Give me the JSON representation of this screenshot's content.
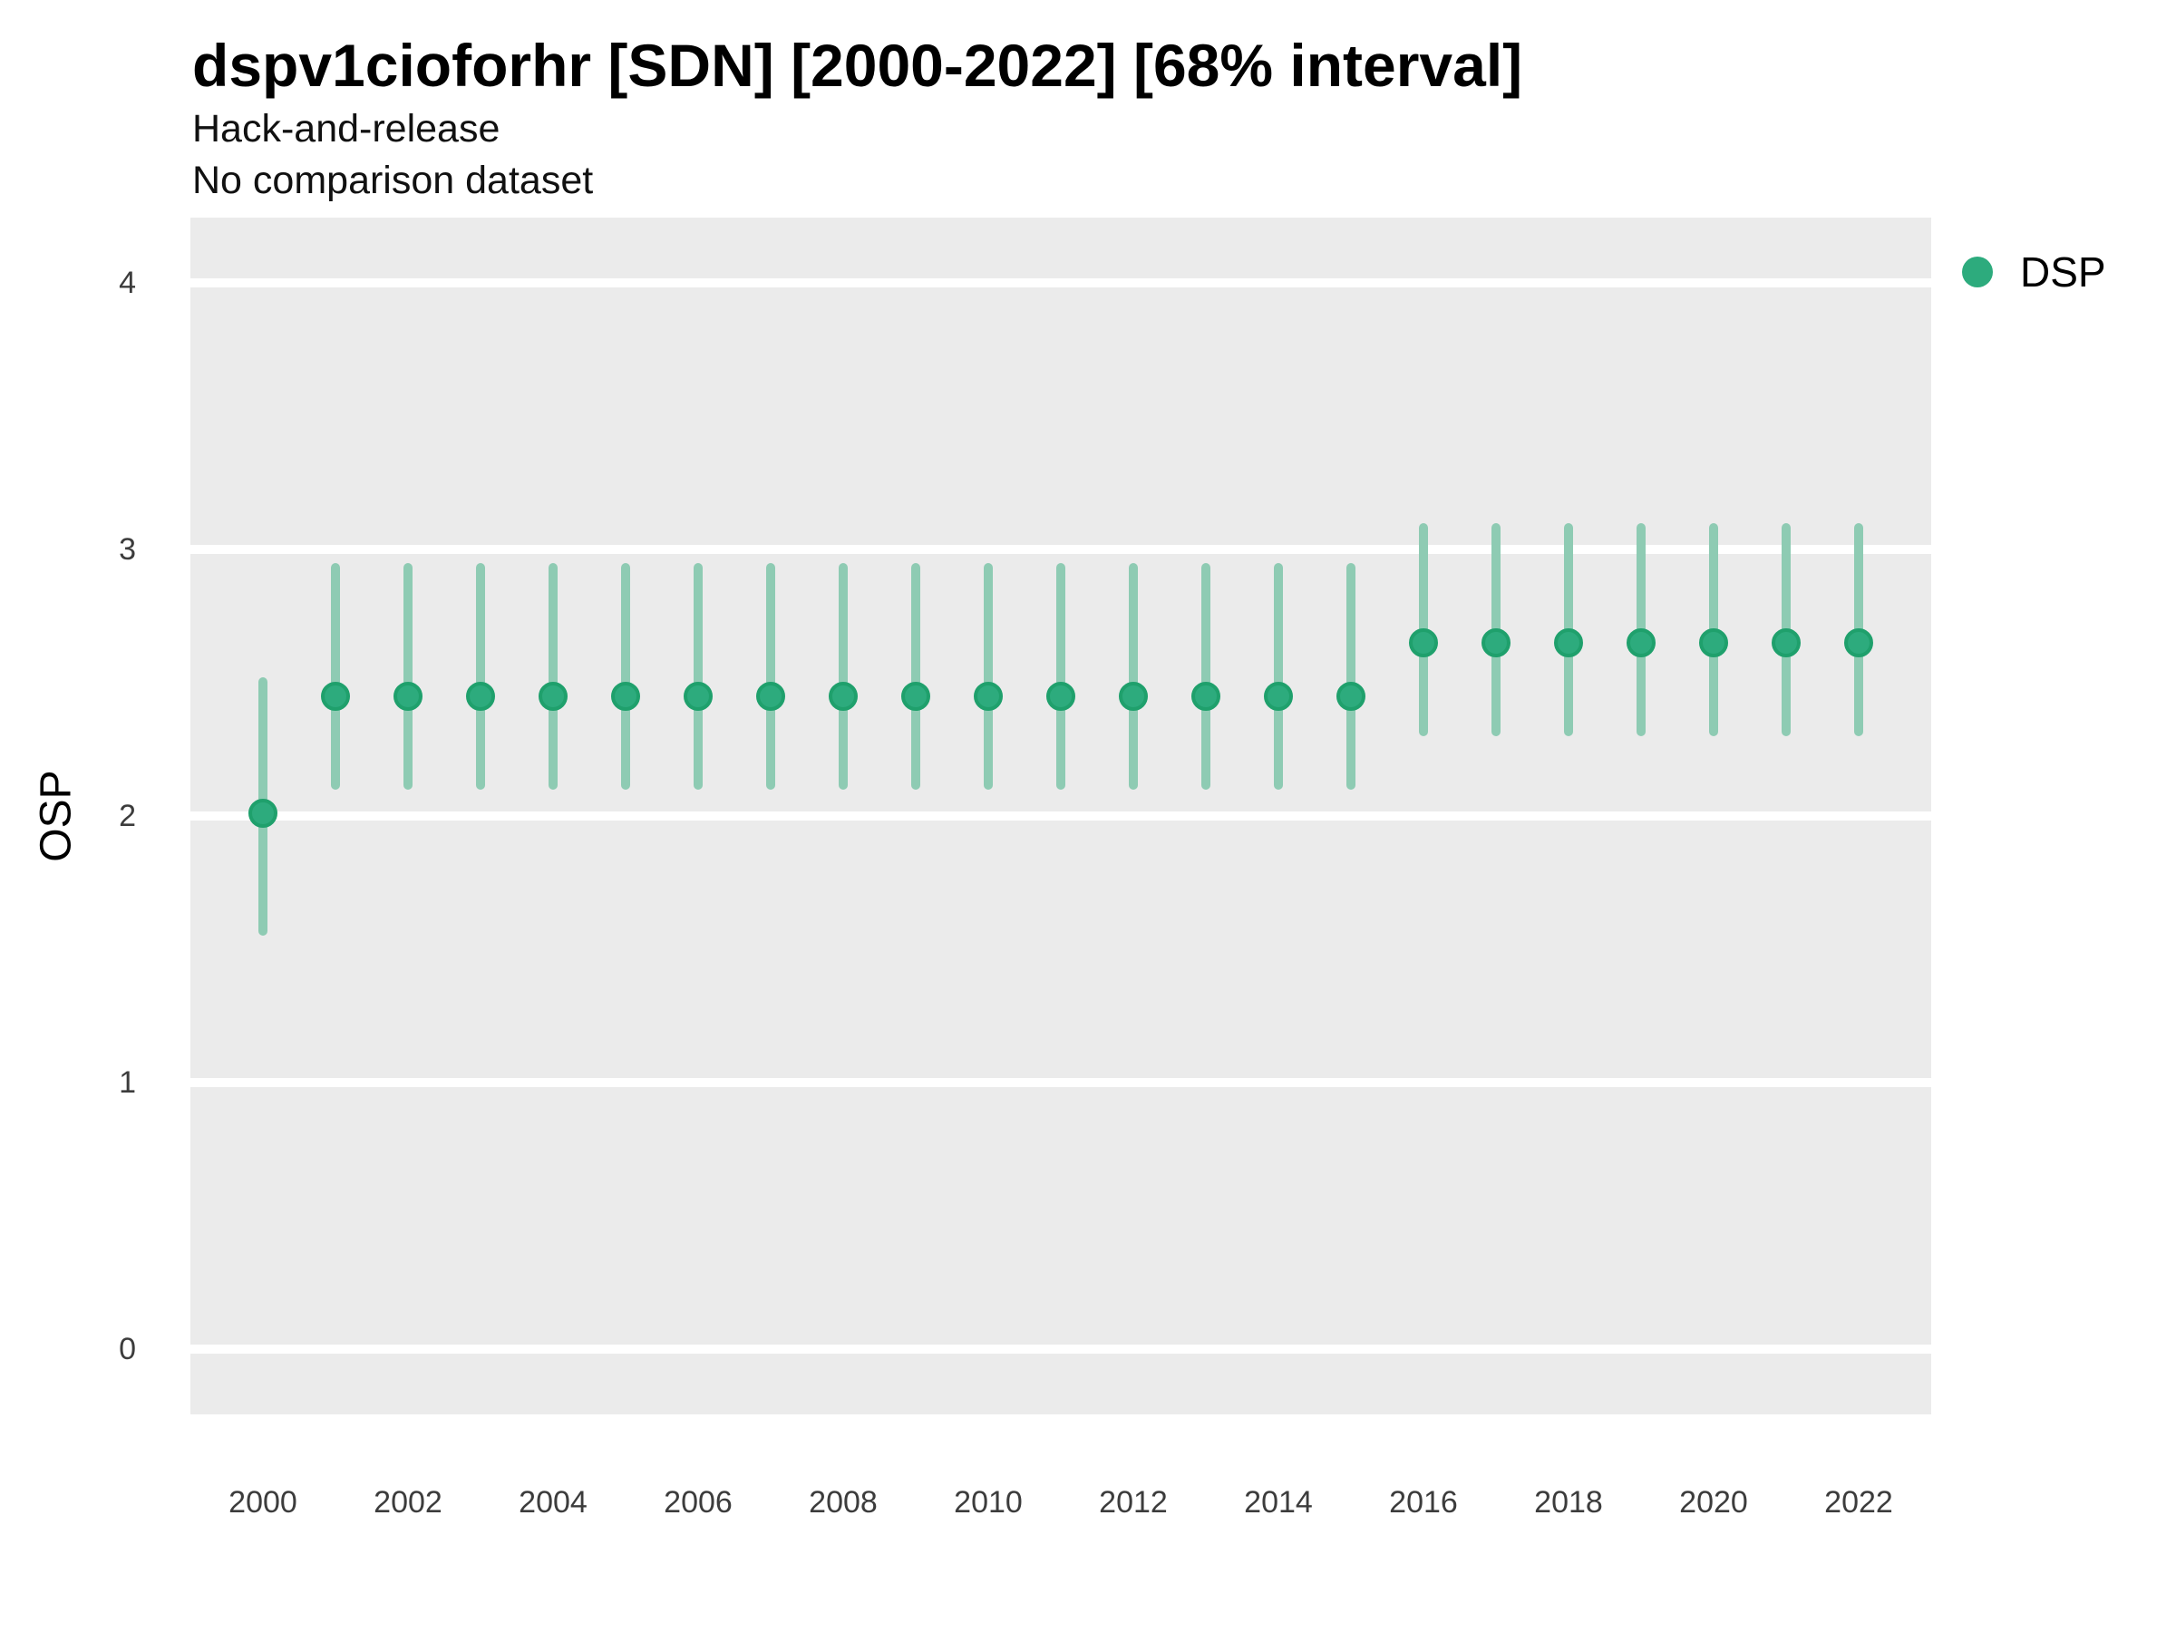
{
  "chart_data": {
    "type": "scatter",
    "title": "dspv1cioforhr [SDN] [2000-2022] [68% interval]",
    "subtitles": [
      "Hack-and-release",
      "No comparison dataset"
    ],
    "xlabel": "",
    "ylabel": "OSP",
    "xlim": [
      1999,
      2023
    ],
    "ylim": [
      0,
      4
    ],
    "xticks": [
      2000,
      2002,
      2004,
      2006,
      2008,
      2010,
      2012,
      2014,
      2016,
      2018,
      2020,
      2022
    ],
    "yticks": [
      0,
      1,
      2,
      3,
      4
    ],
    "grid": "horizontal-major-only",
    "legend_position": "right-top",
    "legend": [
      {
        "label": "DSP",
        "color": "#2dab7d"
      }
    ],
    "series": [
      {
        "name": "DSP",
        "geom": "pointrange",
        "interval": "68%",
        "points": [
          {
            "x": 2000,
            "y": 2.01,
            "ymin": 1.55,
            "ymax": 2.52
          },
          {
            "x": 2001,
            "y": 2.45,
            "ymin": 2.1,
            "ymax": 2.95
          },
          {
            "x": 2002,
            "y": 2.45,
            "ymin": 2.1,
            "ymax": 2.95
          },
          {
            "x": 2003,
            "y": 2.45,
            "ymin": 2.1,
            "ymax": 2.95
          },
          {
            "x": 2004,
            "y": 2.45,
            "ymin": 2.1,
            "ymax": 2.95
          },
          {
            "x": 2005,
            "y": 2.45,
            "ymin": 2.1,
            "ymax": 2.95
          },
          {
            "x": 2006,
            "y": 2.45,
            "ymin": 2.1,
            "ymax": 2.95
          },
          {
            "x": 2007,
            "y": 2.45,
            "ymin": 2.1,
            "ymax": 2.95
          },
          {
            "x": 2008,
            "y": 2.45,
            "ymin": 2.1,
            "ymax": 2.95
          },
          {
            "x": 2009,
            "y": 2.45,
            "ymin": 2.1,
            "ymax": 2.95
          },
          {
            "x": 2010,
            "y": 2.45,
            "ymin": 2.1,
            "ymax": 2.95
          },
          {
            "x": 2011,
            "y": 2.45,
            "ymin": 2.1,
            "ymax": 2.95
          },
          {
            "x": 2012,
            "y": 2.45,
            "ymin": 2.1,
            "ymax": 2.95
          },
          {
            "x": 2013,
            "y": 2.45,
            "ymin": 2.1,
            "ymax": 2.95
          },
          {
            "x": 2014,
            "y": 2.45,
            "ymin": 2.1,
            "ymax": 2.95
          },
          {
            "x": 2015,
            "y": 2.45,
            "ymin": 2.1,
            "ymax": 2.95
          },
          {
            "x": 2016,
            "y": 2.65,
            "ymin": 2.3,
            "ymax": 3.1
          },
          {
            "x": 2017,
            "y": 2.65,
            "ymin": 2.3,
            "ymax": 3.1
          },
          {
            "x": 2018,
            "y": 2.65,
            "ymin": 2.3,
            "ymax": 3.1
          },
          {
            "x": 2019,
            "y": 2.65,
            "ymin": 2.3,
            "ymax": 3.1
          },
          {
            "x": 2020,
            "y": 2.65,
            "ymin": 2.3,
            "ymax": 3.1
          },
          {
            "x": 2021,
            "y": 2.65,
            "ymin": 2.3,
            "ymax": 3.1
          },
          {
            "x": 2022,
            "y": 2.65,
            "ymin": 2.3,
            "ymax": 3.1
          }
        ]
      }
    ],
    "colors": {
      "point_fill": "#2dab7d",
      "point_stroke": "#1fa06c",
      "interval_bar": "#8ecbb3",
      "panel_background": "#ebebeb",
      "gridline": "#ffffff",
      "tick_label": "#3c3c3c"
    }
  }
}
